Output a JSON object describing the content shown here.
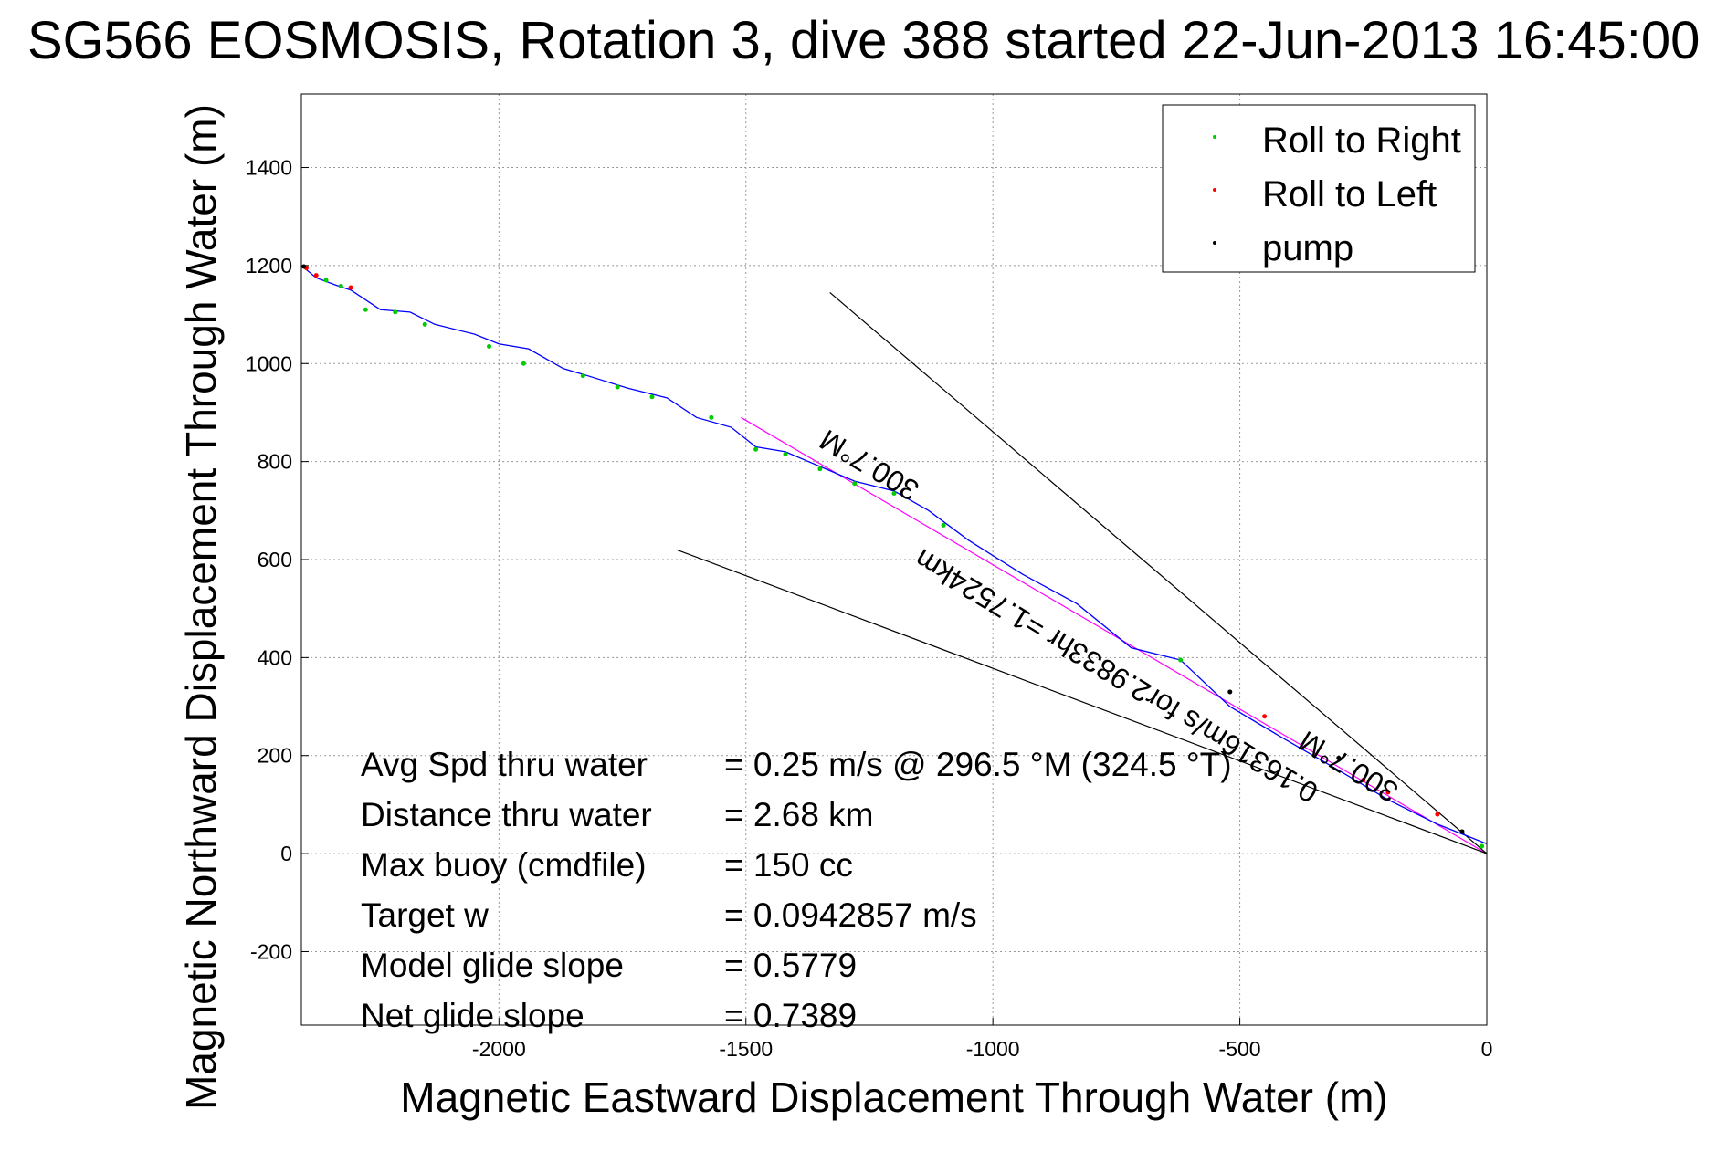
{
  "chart_data": {
    "type": "line",
    "title": "SG566 EOSMOSIS, Rotation 3, dive 388 started 22-Jun-2013 16:45:00",
    "xlabel": "Magnetic Eastward Displacement Through Water (m)",
    "ylabel": "Magnetic Northward Displacement Through Water (m)",
    "xlim": [
      -2400,
      0
    ],
    "ylim": [
      -350,
      1550
    ],
    "xticks": [
      -2000,
      -1500,
      -1000,
      -500,
      0
    ],
    "yticks": [
      -200,
      0,
      200,
      400,
      600,
      800,
      1000,
      1200,
      1400
    ],
    "grid": true,
    "legend_position": "top-right",
    "legend": [
      {
        "label": "Roll to Right",
        "color": "#00cc00"
      },
      {
        "label": "Roll to Left",
        "color": "#ff0000"
      },
      {
        "label": "pump",
        "color": "#000000"
      }
    ],
    "series": [
      {
        "color": "#0000ff",
        "x": [
          0,
          -100,
          -200,
          -300,
          -420,
          -520,
          -620,
          -720,
          -830,
          -940,
          -1050,
          -1130,
          -1200,
          -1280,
          -1350,
          -1420,
          -1480,
          -1530,
          -1600,
          -1660,
          -1740,
          -1820,
          -1870,
          -1940,
          -2000,
          -2050,
          -2130,
          -2180,
          -2240,
          -2300,
          -2330,
          -2370,
          -2400
        ],
        "y": [
          20,
          60,
          110,
          170,
          240,
          300,
          395,
          420,
          510,
          570,
          640,
          700,
          740,
          760,
          790,
          820,
          830,
          870,
          890,
          930,
          950,
          975,
          990,
          1030,
          1040,
          1060,
          1080,
          1105,
          1110,
          1150,
          1160,
          1175,
          1200
        ]
      },
      {
        "name": "Roll to Right",
        "color": "#00cc00",
        "x": [
          -10,
          -620,
          -1100,
          -1200,
          -1280,
          -1350,
          -1420,
          -1480,
          -1570,
          -1690,
          -1760,
          -1830,
          -1950,
          -2020,
          -2150,
          -2210,
          -2270,
          -2320,
          -2350
        ],
        "y": [
          15,
          395,
          670,
          735,
          755,
          785,
          815,
          825,
          890,
          932,
          952,
          975,
          1000,
          1035,
          1080,
          1105,
          1110,
          1158,
          1170
        ]
      },
      {
        "name": "Roll to Left",
        "color": "#ff0000",
        "x": [
          -100,
          -200,
          -250,
          -450,
          -2300,
          -2370,
          -2390
        ],
        "y": [
          80,
          125,
          150,
          280,
          1155,
          1180,
          1195
        ]
      },
      {
        "name": "pump",
        "color": "#000000",
        "x": [
          -50,
          -300,
          -520,
          -2395
        ],
        "y": [
          45,
          195,
          330,
          1198
        ]
      }
    ],
    "lines": [
      {
        "kind": "heading",
        "color": "#ff00ff",
        "x": [
          -1510,
          0
        ],
        "y": [
          890,
          0
        ]
      },
      {
        "kind": "cone",
        "color": "#000000",
        "x": [
          -1330,
          0
        ],
        "y": [
          1145,
          0
        ]
      },
      {
        "kind": "cone",
        "color": "#000000",
        "x": [
          -1640,
          0
        ],
        "y": [
          620,
          0
        ]
      }
    ],
    "annotations": [
      {
        "text": "300.7°M",
        "x": -1240,
        "y": 810,
        "rotate": 211
      },
      {
        "text": "300.7°M",
        "x": -270,
        "y": 195,
        "rotate": 211
      },
      {
        "text": "0.16316m/s for2.9833hr =1.7524km",
        "x": -740,
        "y": 380,
        "rotate": 211
      }
    ],
    "stats": [
      {
        "label": "Avg Spd thru water",
        "value": "=  0.25 m/s @ 296.5 °M (324.5 °T)"
      },
      {
        "label": "Distance thru water",
        "value": "=  2.68 km"
      },
      {
        "label": "Max buoy (cmdfile)",
        "value": "= 150 cc"
      },
      {
        "label": "Target w",
        "value": "= 0.0942857 m/s"
      },
      {
        "label": "Model glide slope",
        "value": "= 0.5779"
      },
      {
        "label": "Net glide slope",
        "value": "= 0.7389"
      }
    ]
  }
}
